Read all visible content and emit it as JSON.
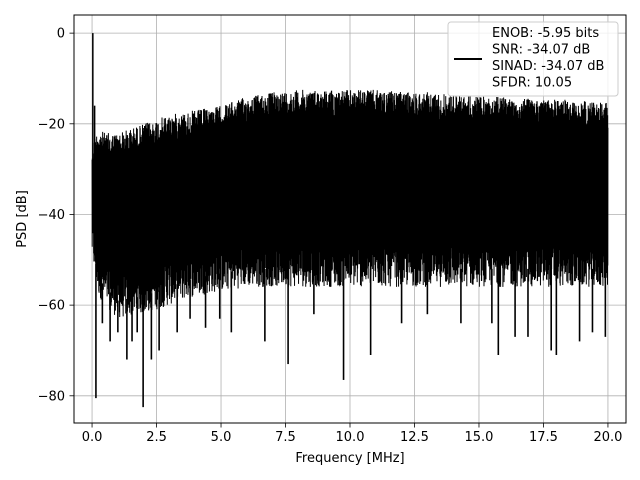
{
  "chart_data": {
    "type": "line",
    "title": "",
    "xlabel": "Frequency [MHz]",
    "ylabel": "PSD [dB]",
    "xlim": [
      -0.7,
      20.7
    ],
    "ylim": [
      -86,
      4
    ],
    "x_ticks": [
      0.0,
      2.5,
      5.0,
      7.5,
      10.0,
      12.5,
      15.0,
      17.5,
      20.0
    ],
    "x_tick_labels": [
      "0.0",
      "2.5",
      "5.0",
      "7.5",
      "10.0",
      "12.5",
      "15.0",
      "17.5",
      "20.0"
    ],
    "y_ticks": [
      0,
      -20,
      -40,
      -60,
      -80
    ],
    "y_tick_labels": [
      "0",
      "−20",
      "−40",
      "−60",
      "−80"
    ],
    "grid": true,
    "legend_position": "top-right",
    "line_color": "#000000",
    "series": [
      {
        "name": "ENOB: -5.95 bits\nSNR: -34.07 dB\nSINAD: -34.07 dB\nSFDR: 10.05",
        "legend_lines": [
          "ENOB: -5.95 bits",
          "SNR: -34.07 dB",
          "SINAD: -34.07 dB",
          "SFDR: 10.05"
        ],
        "envelope": {
          "x": [
            0.0,
            0.25,
            0.5,
            1.0,
            2.0,
            3.0,
            4.0,
            5.0,
            6.0,
            7.0,
            8.0,
            9.0,
            10.0,
            11.0,
            12.0,
            13.0,
            14.0,
            15.0,
            16.0,
            17.0,
            18.0,
            19.0,
            20.0
          ],
          "upper": [
            -24,
            -21,
            -22,
            -22,
            -20,
            -18,
            -17,
            -16,
            -14,
            -13,
            -12.5,
            -12.5,
            -12.5,
            -12.5,
            -13,
            -13,
            -13.5,
            -14,
            -14,
            -14.5,
            -14.5,
            -15,
            -15
          ],
          "lower": [
            -50,
            -58,
            -60,
            -63,
            -62,
            -60,
            -58,
            -57,
            -56,
            -56,
            -56,
            -56,
            -56,
            -56,
            -56,
            -56,
            -56,
            -56,
            -56,
            -56,
            -56,
            -56,
            -56
          ]
        },
        "peaks": [
          {
            "x": 0.03,
            "y": 0
          },
          {
            "x": 0.1,
            "y": -16
          }
        ],
        "dips": [
          {
            "x": 0.15,
            "y": -80.5
          },
          {
            "x": 0.4,
            "y": -64
          },
          {
            "x": 0.7,
            "y": -68
          },
          {
            "x": 1.0,
            "y": -66
          },
          {
            "x": 1.35,
            "y": -72
          },
          {
            "x": 1.55,
            "y": -68
          },
          {
            "x": 1.75,
            "y": -66
          },
          {
            "x": 1.98,
            "y": -82.5
          },
          {
            "x": 2.3,
            "y": -72
          },
          {
            "x": 2.6,
            "y": -70
          },
          {
            "x": 3.3,
            "y": -66
          },
          {
            "x": 3.8,
            "y": -63
          },
          {
            "x": 4.4,
            "y": -65
          },
          {
            "x": 4.95,
            "y": -63
          },
          {
            "x": 5.4,
            "y": -66
          },
          {
            "x": 6.7,
            "y": -68
          },
          {
            "x": 7.6,
            "y": -73
          },
          {
            "x": 8.6,
            "y": -62
          },
          {
            "x": 9.75,
            "y": -76.5
          },
          {
            "x": 10.8,
            "y": -71
          },
          {
            "x": 12.0,
            "y": -64
          },
          {
            "x": 13.0,
            "y": -62
          },
          {
            "x": 14.3,
            "y": -64
          },
          {
            "x": 15.5,
            "y": -64
          },
          {
            "x": 15.75,
            "y": -71
          },
          {
            "x": 16.4,
            "y": -67
          },
          {
            "x": 16.9,
            "y": -67
          },
          {
            "x": 17.8,
            "y": -70
          },
          {
            "x": 18.0,
            "y": -71
          },
          {
            "x": 18.9,
            "y": -68
          },
          {
            "x": 19.4,
            "y": -66
          },
          {
            "x": 19.9,
            "y": -67
          }
        ]
      }
    ]
  }
}
